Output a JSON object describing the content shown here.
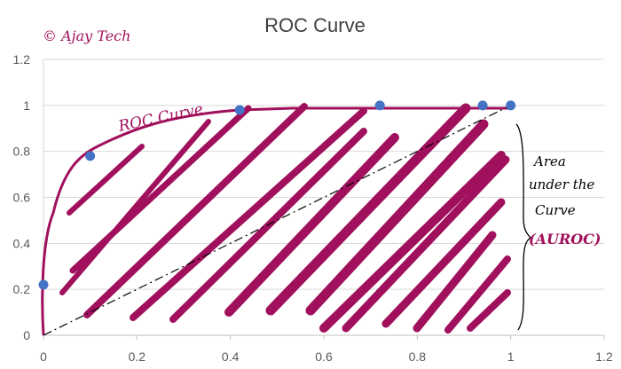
{
  "chart_data": {
    "type": "scatter",
    "title": "ROC Curve",
    "xlabel": "",
    "ylabel": "",
    "xlim": [
      0,
      1.2
    ],
    "ylim": [
      0,
      1.2
    ],
    "x_ticks": [
      "0",
      "0.2",
      "0.4",
      "0.6",
      "0.8",
      "1",
      "1.2"
    ],
    "y_ticks": [
      "0",
      "0.2",
      "0.4",
      "0.6",
      "0.8",
      "1",
      "1.2"
    ],
    "grid": "horizontal",
    "legend": "none",
    "points": [
      {
        "x": 0,
        "y": 0.22
      },
      {
        "x": 0.1,
        "y": 0.78
      },
      {
        "x": 0.42,
        "y": 0.98
      },
      {
        "x": 0.72,
        "y": 1.0
      },
      {
        "x": 0.94,
        "y": 1.0
      },
      {
        "x": 1.0,
        "y": 1.0
      }
    ],
    "point_color": "#4472c4",
    "diagonal": [
      [
        0,
        0
      ],
      [
        1,
        1
      ]
    ],
    "annotations": {
      "watermark": "© Ajay Tech",
      "curve_label": "ROC Curve",
      "area_text": [
        "Area",
        "under the",
        "Curve"
      ],
      "area_abbrev": "(AUROC)"
    },
    "ink_color": "#a0105c"
  }
}
